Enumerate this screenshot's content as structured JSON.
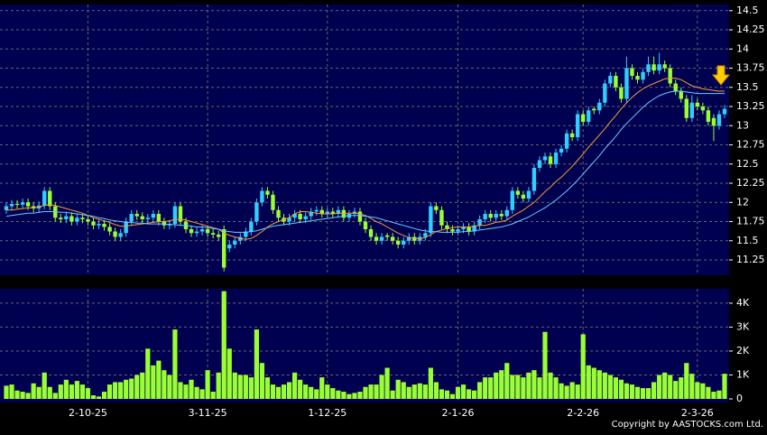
{
  "chart_data": {
    "type": "candlestick",
    "categories": [
      null,
      null,
      null,
      null,
      null,
      null,
      null,
      null,
      null,
      null,
      null,
      null,
      null,
      null,
      null,
      "2-10-25",
      null,
      null,
      null,
      null,
      null,
      null,
      null,
      null,
      null,
      null,
      null,
      null,
      null,
      null,
      null,
      null,
      null,
      null,
      null,
      null,
      null,
      "3-11-25",
      null,
      null,
      null,
      null,
      null,
      null,
      null,
      null,
      null,
      null,
      null,
      null,
      null,
      null,
      null,
      null,
      null,
      null,
      null,
      null,
      null,
      "1-12-25",
      null,
      null,
      null,
      null,
      null,
      null,
      null,
      null,
      null,
      null,
      null,
      null,
      null,
      null,
      null,
      null,
      null,
      null,
      null,
      null,
      null,
      null,
      null,
      "2-1-26",
      null,
      null,
      null,
      null,
      null,
      null,
      null,
      null,
      null,
      null,
      null,
      null,
      null,
      null,
      null,
      null,
      null,
      null,
      null,
      null,
      null,
      null,
      "2-2-26",
      null,
      null,
      null,
      null,
      null,
      null,
      null,
      null,
      null,
      null,
      null,
      null,
      null,
      null,
      null,
      null,
      null,
      null,
      null,
      null,
      "2-3-26",
      null,
      null,
      null,
      null,
      null
    ],
    "ohlc": [
      [
        11.9,
        12.0,
        11.85,
        11.95
      ],
      [
        11.95,
        12.03,
        11.9,
        11.98
      ],
      [
        11.98,
        12.03,
        11.92,
        11.97
      ],
      [
        11.97,
        12.05,
        11.92,
        12.0
      ],
      [
        12.0,
        12.05,
        11.9,
        11.95
      ],
      [
        11.95,
        12.0,
        11.87,
        11.92
      ],
      [
        11.92,
        12.01,
        11.87,
        11.96
      ],
      [
        11.96,
        12.2,
        11.91,
        12.15
      ],
      [
        12.15,
        12.2,
        11.9,
        11.95
      ],
      [
        11.95,
        12.0,
        11.75,
        11.8
      ],
      [
        11.8,
        11.85,
        11.73,
        11.78
      ],
      [
        11.78,
        11.87,
        11.73,
        11.82
      ],
      [
        11.82,
        11.87,
        11.7,
        11.75
      ],
      [
        11.75,
        11.85,
        11.7,
        11.8
      ],
      [
        11.8,
        11.85,
        11.73,
        11.78
      ],
      [
        11.78,
        11.83,
        11.7,
        11.75
      ],
      [
        11.75,
        11.8,
        11.65,
        11.7
      ],
      [
        11.7,
        11.77,
        11.65,
        11.72
      ],
      [
        11.72,
        11.77,
        11.63,
        11.68
      ],
      [
        11.68,
        11.73,
        11.57,
        11.62
      ],
      [
        11.62,
        11.67,
        11.5,
        11.55
      ],
      [
        11.55,
        11.65,
        11.5,
        11.6
      ],
      [
        11.6,
        11.8,
        11.55,
        11.75
      ],
      [
        11.75,
        11.9,
        11.7,
        11.85
      ],
      [
        11.85,
        11.9,
        11.77,
        11.82
      ],
      [
        11.82,
        11.87,
        11.73,
        11.78
      ],
      [
        11.78,
        11.85,
        11.73,
        11.8
      ],
      [
        11.8,
        11.9,
        11.75,
        11.85
      ],
      [
        11.85,
        11.9,
        11.7,
        11.75
      ],
      [
        11.75,
        11.8,
        11.65,
        11.7
      ],
      [
        11.7,
        11.77,
        11.65,
        11.72
      ],
      [
        11.72,
        12.0,
        11.67,
        11.95
      ],
      [
        11.95,
        12.0,
        11.7,
        11.75
      ],
      [
        11.75,
        11.8,
        11.6,
        11.65
      ],
      [
        11.65,
        11.7,
        11.55,
        11.6
      ],
      [
        11.6,
        11.67,
        11.55,
        11.62
      ],
      [
        11.62,
        11.7,
        11.57,
        11.65
      ],
      [
        11.65,
        11.7,
        11.55,
        11.6
      ],
      [
        11.6,
        11.65,
        11.53,
        11.58
      ],
      [
        11.58,
        11.63,
        11.5,
        11.55
      ],
      [
        11.65,
        11.7,
        11.1,
        11.15
      ],
      [
        11.4,
        11.5,
        11.35,
        11.45
      ],
      [
        11.45,
        11.55,
        11.4,
        11.5
      ],
      [
        11.5,
        11.6,
        11.45,
        11.55
      ],
      [
        11.55,
        11.67,
        11.5,
        11.62
      ],
      [
        11.62,
        11.8,
        11.57,
        11.75
      ],
      [
        11.75,
        12.05,
        11.7,
        12.0
      ],
      [
        12.0,
        12.2,
        11.95,
        12.15
      ],
      [
        12.15,
        12.2,
        12.05,
        12.1
      ],
      [
        12.1,
        12.15,
        11.85,
        11.9
      ],
      [
        11.9,
        11.95,
        11.75,
        11.8
      ],
      [
        11.8,
        11.85,
        11.7,
        11.75
      ],
      [
        11.75,
        11.85,
        11.7,
        11.8
      ],
      [
        11.8,
        11.9,
        11.75,
        11.85
      ],
      [
        11.85,
        11.9,
        11.73,
        11.78
      ],
      [
        11.78,
        11.87,
        11.73,
        11.82
      ],
      [
        11.82,
        11.93,
        11.77,
        11.88
      ],
      [
        11.88,
        11.95,
        11.83,
        11.9
      ],
      [
        11.9,
        11.95,
        11.8,
        11.85
      ],
      [
        11.85,
        11.93,
        11.8,
        11.88
      ],
      [
        11.88,
        11.93,
        11.8,
        11.85
      ],
      [
        11.85,
        11.95,
        11.8,
        11.9
      ],
      [
        11.9,
        11.95,
        11.75,
        11.8
      ],
      [
        11.8,
        11.9,
        11.75,
        11.85
      ],
      [
        11.85,
        11.93,
        11.8,
        11.88
      ],
      [
        11.88,
        11.93,
        11.7,
        11.75
      ],
      [
        11.75,
        11.8,
        11.6,
        11.65
      ],
      [
        11.65,
        11.7,
        11.5,
        11.55
      ],
      [
        11.55,
        11.6,
        11.45,
        11.5
      ],
      [
        11.5,
        11.6,
        11.45,
        11.55
      ],
      [
        11.57,
        11.6,
        11.5,
        11.55
      ],
      [
        11.55,
        11.6,
        11.45,
        11.5
      ],
      [
        11.5,
        11.55,
        11.4,
        11.45
      ],
      [
        11.45,
        11.55,
        11.4,
        11.5
      ],
      [
        11.5,
        11.6,
        11.45,
        11.55
      ],
      [
        11.55,
        11.6,
        11.45,
        11.5
      ],
      [
        11.5,
        11.6,
        11.45,
        11.55
      ],
      [
        11.55,
        11.65,
        11.5,
        11.6
      ],
      [
        11.6,
        12.0,
        11.55,
        11.95
      ],
      [
        11.95,
        12.0,
        11.85,
        11.9
      ],
      [
        11.9,
        11.95,
        11.65,
        11.7
      ],
      [
        11.7,
        11.75,
        11.6,
        11.65
      ],
      [
        11.65,
        11.7,
        11.57,
        11.62
      ],
      [
        11.62,
        11.7,
        11.57,
        11.65
      ],
      [
        11.65,
        11.73,
        11.6,
        11.68
      ],
      [
        11.68,
        11.73,
        11.57,
        11.62
      ],
      [
        11.62,
        11.75,
        11.57,
        11.7
      ],
      [
        11.7,
        11.83,
        11.65,
        11.78
      ],
      [
        11.78,
        11.9,
        11.73,
        11.85
      ],
      [
        11.85,
        11.9,
        11.75,
        11.8
      ],
      [
        11.8,
        11.9,
        11.75,
        11.85
      ],
      [
        11.85,
        11.9,
        11.77,
        11.82
      ],
      [
        11.82,
        11.95,
        11.77,
        11.9
      ],
      [
        11.9,
        12.2,
        11.85,
        12.15
      ],
      [
        12.15,
        12.2,
        12.05,
        12.1
      ],
      [
        12.1,
        12.15,
        12.0,
        12.05
      ],
      [
        12.05,
        12.2,
        12.0,
        12.15
      ],
      [
        12.15,
        12.5,
        12.1,
        12.45
      ],
      [
        12.45,
        12.6,
        12.4,
        12.55
      ],
      [
        12.55,
        12.65,
        12.5,
        12.6
      ],
      [
        12.6,
        12.65,
        12.45,
        12.5
      ],
      [
        12.5,
        12.7,
        12.45,
        12.65
      ],
      [
        12.65,
        12.75,
        12.6,
        12.7
      ],
      [
        12.7,
        12.95,
        12.65,
        12.9
      ],
      [
        12.9,
        12.95,
        12.8,
        12.85
      ],
      [
        12.85,
        13.2,
        12.8,
        13.15
      ],
      [
        13.15,
        13.2,
        13.0,
        13.05
      ],
      [
        13.05,
        13.25,
        13.0,
        13.2
      ],
      [
        13.22,
        13.25,
        13.15,
        13.2
      ],
      [
        13.2,
        13.35,
        13.15,
        13.3
      ],
      [
        13.3,
        13.6,
        13.25,
        13.55
      ],
      [
        13.55,
        13.7,
        13.5,
        13.65
      ],
      [
        13.65,
        13.7,
        13.45,
        13.5
      ],
      [
        13.5,
        13.55,
        13.3,
        13.35
      ],
      [
        13.35,
        13.9,
        13.3,
        13.75
      ],
      [
        13.75,
        13.8,
        13.6,
        13.65
      ],
      [
        13.65,
        13.7,
        13.55,
        13.6
      ],
      [
        13.6,
        13.75,
        13.55,
        13.7
      ],
      [
        13.7,
        13.9,
        13.65,
        13.8
      ],
      [
        13.8,
        13.9,
        13.67,
        13.72
      ],
      [
        13.72,
        13.95,
        13.67,
        13.8
      ],
      [
        13.8,
        13.85,
        13.7,
        13.75
      ],
      [
        13.75,
        13.8,
        13.5,
        13.55
      ],
      [
        13.55,
        13.6,
        13.4,
        13.45
      ],
      [
        13.45,
        13.5,
        13.3,
        13.35
      ],
      [
        13.35,
        13.4,
        13.05,
        13.1
      ],
      [
        13.1,
        13.4,
        13.05,
        13.3
      ],
      [
        13.3,
        13.35,
        13.2,
        13.25
      ],
      [
        13.25,
        13.3,
        13.15,
        13.2
      ],
      [
        13.2,
        13.25,
        13.0,
        13.05
      ],
      [
        13.1,
        13.15,
        12.8,
        13.0
      ],
      [
        13.0,
        13.2,
        12.95,
        13.15
      ],
      [
        13.15,
        13.27,
        13.1,
        13.22
      ]
    ],
    "up_color": "#33ccff",
    "down_color": "#99ff33",
    "moving_averages": [
      {
        "color": "#ff9933",
        "values": [
          11.9,
          11.9,
          11.91,
          11.92,
          11.93,
          11.93,
          11.94,
          11.96,
          11.97,
          11.96,
          11.94,
          11.92,
          11.9,
          11.88,
          11.86,
          11.83,
          11.8,
          11.78,
          11.76,
          11.74,
          11.71,
          11.69,
          11.69,
          11.7,
          11.71,
          11.72,
          11.73,
          11.74,
          11.75,
          11.75,
          11.76,
          11.78,
          11.78,
          11.77,
          11.75,
          11.73,
          11.71,
          11.69,
          11.67,
          11.65,
          11.6,
          11.57,
          11.55,
          11.53,
          11.52,
          11.53,
          11.57,
          11.62,
          11.68,
          11.72,
          11.75,
          11.78,
          11.8,
          11.85,
          11.88,
          11.88,
          11.87,
          11.86,
          11.85,
          11.85,
          11.85,
          11.86,
          11.86,
          11.86,
          11.86,
          11.85,
          11.83,
          11.79,
          11.75,
          11.72,
          11.68,
          11.64,
          11.6,
          11.57,
          11.54,
          11.53,
          11.53,
          11.54,
          11.58,
          11.62,
          11.64,
          11.66,
          11.67,
          11.68,
          11.68,
          11.68,
          11.69,
          11.7,
          11.7,
          11.72,
          11.74,
          11.75,
          11.77,
          11.82,
          11.86,
          11.9,
          11.95,
          12.0,
          12.07,
          12.14,
          12.2,
          12.27,
          12.33,
          12.4,
          12.47,
          12.55,
          12.63,
          12.72,
          12.8,
          12.88,
          12.96,
          13.05,
          13.13,
          13.22,
          13.3,
          13.37,
          13.43,
          13.48,
          13.52,
          13.55,
          13.58,
          13.61,
          13.62,
          13.62,
          13.6,
          13.56,
          13.52,
          13.5,
          13.48,
          13.47,
          13.46,
          13.45,
          13.45
        ]
      },
      {
        "color": "#66ccff",
        "values": [
          11.82,
          11.83,
          11.84,
          11.85,
          11.86,
          11.86,
          11.87,
          11.88,
          11.88,
          11.88,
          11.87,
          11.87,
          11.86,
          11.85,
          11.84,
          11.83,
          11.82,
          11.8,
          11.79,
          11.77,
          11.76,
          11.75,
          11.74,
          11.74,
          11.73,
          11.73,
          11.72,
          11.72,
          11.72,
          11.72,
          11.71,
          11.71,
          11.7,
          11.7,
          11.69,
          11.68,
          11.68,
          11.67,
          11.66,
          11.65,
          11.63,
          11.62,
          11.61,
          11.61,
          11.61,
          11.62,
          11.63,
          11.65,
          11.67,
          11.69,
          11.7,
          11.71,
          11.72,
          11.73,
          11.74,
          11.75,
          11.76,
          11.77,
          11.78,
          11.79,
          11.8,
          11.81,
          11.82,
          11.83,
          11.83,
          11.83,
          11.82,
          11.81,
          11.8,
          11.78,
          11.76,
          11.74,
          11.72,
          11.7,
          11.68,
          11.66,
          11.64,
          11.63,
          11.62,
          11.62,
          11.61,
          11.61,
          11.61,
          11.61,
          11.62,
          11.62,
          11.63,
          11.64,
          11.65,
          11.66,
          11.67,
          11.68,
          11.7,
          11.72,
          11.75,
          11.78,
          11.81,
          11.85,
          11.89,
          11.93,
          11.98,
          12.03,
          12.09,
          12.15,
          12.22,
          12.29,
          12.37,
          12.45,
          12.53,
          12.61,
          12.7,
          12.78,
          12.86,
          12.95,
          13.03,
          13.1,
          13.17,
          13.24,
          13.3,
          13.35,
          13.39,
          13.42,
          13.44,
          13.45,
          13.45,
          13.44,
          13.43,
          13.42,
          13.42,
          13.42,
          13.42,
          13.42,
          13.42
        ]
      }
    ],
    "ylim": [
      11.05,
      14.58
    ],
    "yticks": [
      11.25,
      11.5,
      11.75,
      12,
      12.25,
      12.5,
      12.75,
      13,
      13.25,
      13.5,
      13.75,
      14,
      14.25,
      14.5
    ],
    "grid": true,
    "volume": {
      "color": "#99ff33",
      "ylim": [
        0,
        4600
      ],
      "yticks": [
        0,
        {
          "value": 1000,
          "label": "1K"
        },
        {
          "value": 2000,
          "label": "2K"
        },
        {
          "value": 3000,
          "label": "3K"
        },
        {
          "value": 4000,
          "label": "4K"
        }
      ],
      "values": [
        550,
        600,
        350,
        300,
        250,
        650,
        500,
        1100,
        500,
        250,
        600,
        800,
        600,
        750,
        600,
        450,
        150,
        100,
        300,
        600,
        700,
        700,
        800,
        850,
        1000,
        1100,
        2100,
        1400,
        1600,
        1200,
        1000,
        2900,
        700,
        600,
        800,
        500,
        400,
        1200,
        300,
        1100,
        4500,
        2100,
        1100,
        1000,
        1000,
        900,
        2900,
        1500,
        900,
        600,
        500,
        600,
        700,
        1100,
        800,
        600,
        500,
        400,
        900,
        600,
        450,
        350,
        300,
        200,
        250,
        300,
        500,
        600,
        600,
        1000,
        1300,
        350,
        800,
        700,
        500,
        600,
        650,
        600,
        1300,
        700,
        400,
        350,
        200,
        500,
        600,
        400,
        350,
        700,
        900,
        900,
        1100,
        1200,
        1500,
        1000,
        1000,
        900,
        1100,
        1200,
        900,
        2800,
        1100,
        900,
        650,
        550,
        700,
        600,
        2700,
        1400,
        1300,
        1200,
        1100,
        1000,
        900,
        800,
        650,
        600,
        500,
        450,
        450,
        700,
        1000,
        1100,
        1000,
        750,
        900,
        1500,
        1050,
        700,
        650,
        500,
        300,
        350,
        1050
      ]
    },
    "source": "Copyright by AASTOCKS.com Ltd."
  }
}
